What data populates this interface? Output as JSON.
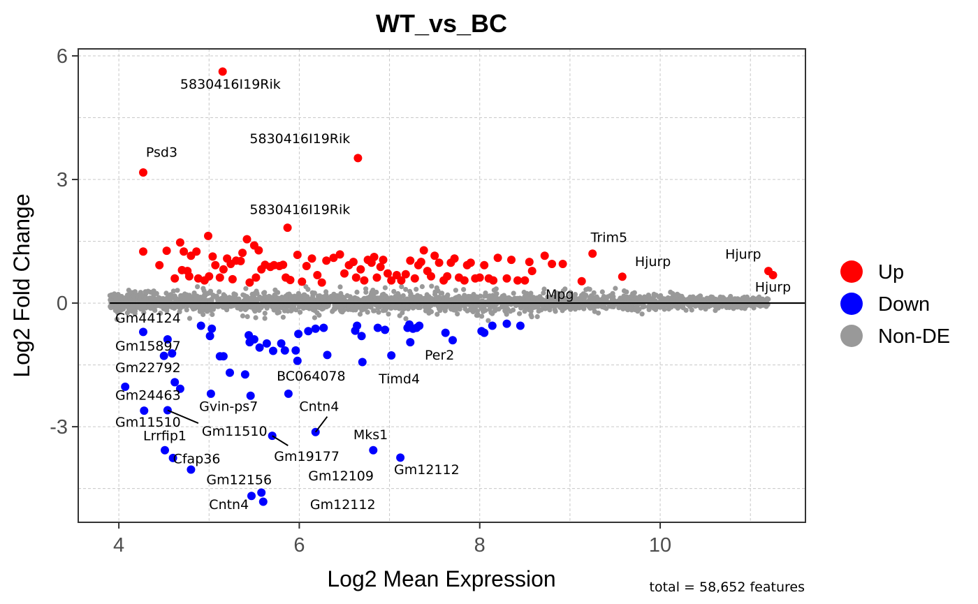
{
  "chart_data": {
    "type": "scatter",
    "title": "WT_vs_BC",
    "xlabel": "Log2 Mean Expression",
    "ylabel": "Log2 Fold Change",
    "caption": "total = 58,652 features",
    "xlim": [
      3.55,
      11.61
    ],
    "ylim": [
      -5.32,
      6.17
    ],
    "x_ticks": [
      4,
      6,
      8,
      10
    ],
    "x_tick_labels": [
      "4",
      "6",
      "8",
      "10"
    ],
    "y_ticks": [
      6,
      3,
      0,
      -3
    ],
    "y_tick_labels": [
      "6",
      "3",
      "0",
      "-3"
    ],
    "x_minor_grid": [
      5,
      7,
      9,
      11
    ],
    "y_minor_grid": [
      4.5,
      1.5,
      -1.5,
      -4.5
    ],
    "grid": true,
    "hline": 0,
    "legend": {
      "position": "right",
      "entries": [
        {
          "name": "Up",
          "color": "#ff0000"
        },
        {
          "name": "Down",
          "color": "#0000ff"
        },
        {
          "name": "Non-DE",
          "color": "#999999"
        }
      ]
    },
    "series": [
      {
        "name": "Up",
        "color": "#ff0000",
        "points": [
          [
            5.15,
            5.62
          ],
          [
            6.65,
            3.52
          ],
          [
            4.27,
            3.17
          ],
          [
            5.87,
            1.83
          ],
          [
            9.25,
            1.2
          ],
          [
            9.58,
            0.64
          ],
          [
            11.2,
            0.78
          ],
          [
            11.25,
            0.68
          ],
          [
            4.27,
            1.25
          ],
          [
            4.45,
            0.92
          ],
          [
            4.53,
            1.27
          ],
          [
            4.62,
            0.6
          ],
          [
            4.68,
            1.47
          ],
          [
            4.7,
            0.8
          ],
          [
            4.72,
            1.25
          ],
          [
            4.76,
            0.78
          ],
          [
            4.8,
            1.15
          ],
          [
            4.78,
            0.65
          ],
          [
            4.86,
            1.25
          ],
          [
            4.88,
            0.6
          ],
          [
            4.95,
            0.55
          ],
          [
            4.99,
            1.63
          ],
          [
            5.0,
            0.65
          ],
          [
            5.04,
            1.13
          ],
          [
            5.07,
            0.92
          ],
          [
            5.12,
            0.62
          ],
          [
            5.16,
            0.82
          ],
          [
            5.2,
            1.08
          ],
          [
            5.24,
            0.95
          ],
          [
            5.26,
            0.58
          ],
          [
            5.3,
            1.03
          ],
          [
            5.35,
            1.02
          ],
          [
            5.37,
            1.22
          ],
          [
            5.42,
            1.55
          ],
          [
            5.45,
            0.5
          ],
          [
            5.5,
            1.4
          ],
          [
            5.52,
            0.62
          ],
          [
            5.55,
            1.28
          ],
          [
            5.58,
            0.82
          ],
          [
            5.62,
            0.93
          ],
          [
            5.68,
            0.88
          ],
          [
            5.72,
            0.92
          ],
          [
            5.78,
            0.9
          ],
          [
            5.82,
            0.93
          ],
          [
            5.85,
            0.62
          ],
          [
            5.9,
            0.56
          ],
          [
            5.98,
            1.17
          ],
          [
            6.03,
            0.52
          ],
          [
            6.08,
            0.9
          ],
          [
            6.14,
            1.08
          ],
          [
            6.2,
            0.68
          ],
          [
            6.25,
            0.5
          ],
          [
            6.3,
            1.03
          ],
          [
            6.38,
            1.1
          ],
          [
            6.45,
            1.18
          ],
          [
            6.5,
            0.72
          ],
          [
            6.55,
            0.92
          ],
          [
            6.6,
            1.0
          ],
          [
            6.63,
            0.62
          ],
          [
            6.68,
            0.82
          ],
          [
            6.72,
            0.55
          ],
          [
            6.76,
            1.05
          ],
          [
            6.8,
            0.98
          ],
          [
            6.83,
            1.12
          ],
          [
            6.86,
            0.62
          ],
          [
            6.9,
            0.88
          ],
          [
            6.93,
            1.05
          ],
          [
            6.98,
            0.72
          ],
          [
            7.02,
            0.55
          ],
          [
            7.08,
            0.68
          ],
          [
            7.13,
            0.55
          ],
          [
            7.18,
            0.7
          ],
          [
            7.23,
            1.03
          ],
          [
            7.28,
            0.6
          ],
          [
            7.32,
            0.92
          ],
          [
            7.35,
            1.0
          ],
          [
            7.38,
            1.28
          ],
          [
            7.42,
            0.78
          ],
          [
            7.46,
            0.65
          ],
          [
            7.5,
            1.15
          ],
          [
            7.55,
            0.98
          ],
          [
            7.6,
            0.55
          ],
          [
            7.64,
            0.65
          ],
          [
            7.68,
            0.98
          ],
          [
            7.72,
            1.08
          ],
          [
            7.77,
            0.62
          ],
          [
            7.83,
            0.55
          ],
          [
            7.86,
            0.92
          ],
          [
            7.9,
            0.98
          ],
          [
            7.95,
            0.6
          ],
          [
            8.0,
            0.62
          ],
          [
            8.05,
            0.92
          ],
          [
            8.1,
            0.6
          ],
          [
            8.15,
            0.55
          ],
          [
            8.2,
            1.1
          ],
          [
            8.3,
            0.6
          ],
          [
            8.35,
            1.05
          ],
          [
            8.42,
            0.55
          ],
          [
            8.5,
            0.55
          ],
          [
            8.55,
            1.0
          ],
          [
            8.58,
            0.78
          ],
          [
            8.72,
            1.15
          ],
          [
            8.8,
            0.95
          ],
          [
            8.92,
            0.95
          ],
          [
            9.13,
            0.53
          ]
        ]
      },
      {
        "name": "Down",
        "color": "#0000ff",
        "points": [
          [
            4.27,
            -0.7
          ],
          [
            4.07,
            -2.03
          ],
          [
            4.28,
            -2.61
          ],
          [
            4.5,
            -1.28
          ],
          [
            4.54,
            -0.88
          ],
          [
            4.59,
            -1.22
          ],
          [
            4.62,
            -1.92
          ],
          [
            4.68,
            -2.08
          ],
          [
            4.54,
            -2.6
          ],
          [
            4.51,
            -3.57
          ],
          [
            4.6,
            -3.76
          ],
          [
            4.8,
            -4.04
          ],
          [
            4.91,
            -0.55
          ],
          [
            5.01,
            -0.8
          ],
          [
            5.03,
            -0.62
          ],
          [
            5.02,
            -2.2
          ],
          [
            5.12,
            -1.29
          ],
          [
            5.16,
            -1.29
          ],
          [
            5.23,
            -1.69
          ],
          [
            5.4,
            -1.73
          ],
          [
            5.44,
            -0.78
          ],
          [
            5.45,
            -0.95
          ],
          [
            5.5,
            -0.88
          ],
          [
            5.46,
            -2.25
          ],
          [
            5.56,
            -1.08
          ],
          [
            5.64,
            -0.98
          ],
          [
            5.7,
            -3.22
          ],
          [
            5.8,
            -0.98
          ],
          [
            5.84,
            -1.15
          ],
          [
            5.96,
            -1.15
          ],
          [
            5.98,
            -1.4
          ],
          [
            5.99,
            -0.75
          ],
          [
            5.71,
            -1.16
          ],
          [
            5.88,
            -2.2
          ],
          [
            6.1,
            -0.68
          ],
          [
            6.18,
            -0.62
          ],
          [
            6.27,
            -0.6
          ],
          [
            6.31,
            -1.26
          ],
          [
            6.18,
            -3.13
          ],
          [
            6.62,
            -0.67
          ],
          [
            6.64,
            -0.55
          ],
          [
            6.69,
            -0.8
          ],
          [
            6.7,
            -1.43
          ],
          [
            6.82,
            -3.57
          ],
          [
            6.87,
            -0.6
          ],
          [
            6.95,
            -0.65
          ],
          [
            7.02,
            -1.27
          ],
          [
            7.12,
            -3.75
          ],
          [
            7.2,
            -0.6
          ],
          [
            7.22,
            -0.52
          ],
          [
            7.23,
            -0.95
          ],
          [
            7.3,
            -0.6
          ],
          [
            7.26,
            -0.62
          ],
          [
            7.33,
            -0.55
          ],
          [
            7.62,
            -0.72
          ],
          [
            7.7,
            -0.9
          ],
          [
            8.05,
            -0.72
          ],
          [
            8.02,
            -0.68
          ],
          [
            8.14,
            -0.55
          ],
          [
            8.3,
            -0.5
          ],
          [
            8.45,
            -0.55
          ],
          [
            5.47,
            -4.68
          ],
          [
            5.58,
            -4.6
          ],
          [
            5.6,
            -4.82
          ]
        ]
      }
    ],
    "nonde_cloud": {
      "color": "#999999",
      "x_range": [
        3.9,
        11.2
      ],
      "description": "dense band of non-DE features around log2FC = 0 (roughly -0.35 to 0.45)"
    },
    "annotations": [
      {
        "text": "5830416I19Rik",
        "x": 5.15,
        "y": 5.62,
        "label_x": 4.68,
        "label_y": 5.2,
        "leader": false
      },
      {
        "text": "5830416I19Rik",
        "x": 6.65,
        "y": 3.52,
        "label_x": 5.45,
        "label_y": 3.88,
        "leader": false
      },
      {
        "text": "Psd3",
        "x": 4.27,
        "y": 3.17,
        "label_x": 4.3,
        "label_y": 3.55,
        "leader": false
      },
      {
        "text": "5830416I19Rik",
        "x": 5.87,
        "y": 1.83,
        "label_x": 5.45,
        "label_y": 2.16,
        "leader": false
      },
      {
        "text": "Trim5",
        "x": 9.25,
        "y": 1.2,
        "label_x": 9.23,
        "label_y": 1.48,
        "leader": false
      },
      {
        "text": "Hjurp",
        "x": 9.58,
        "y": 0.64,
        "label_x": 9.72,
        "label_y": 0.9,
        "leader": false
      },
      {
        "text": "Hjurp",
        "x": 11.2,
        "y": 0.78,
        "label_x": 10.72,
        "label_y": 1.08,
        "leader": false
      },
      {
        "text": "Hjurp",
        "x": 11.25,
        "y": 0.68,
        "label_x": 11.05,
        "label_y": 0.28,
        "leader": false
      },
      {
        "text": "Mpg",
        "x": 8.8,
        "y": 0.05,
        "label_x": 8.73,
        "label_y": 0.1,
        "leader": false
      },
      {
        "text": "Gm44124",
        "x": 4.27,
        "y": -0.7,
        "label_x": 3.96,
        "label_y": -0.47,
        "leader": false
      },
      {
        "text": "Gm15897",
        "x": 4.54,
        "y": -0.88,
        "label_x": 3.96,
        "label_y": -1.15,
        "leader": false
      },
      {
        "text": "Gm22792",
        "x": 4.07,
        "y": -2.03,
        "label_x": 3.96,
        "label_y": -1.68,
        "leader": false
      },
      {
        "text": "Gm24463",
        "x": 4.28,
        "y": -2.61,
        "label_x": 3.96,
        "label_y": -2.35,
        "leader": false
      },
      {
        "text": "Gm11510",
        "x": 4.28,
        "y": -2.61,
        "label_x": 3.96,
        "label_y": -3.0,
        "leader": false
      },
      {
        "text": "Gm11510",
        "x": 4.54,
        "y": -2.6,
        "label_x": 4.92,
        "label_y": -3.22,
        "leader": true
      },
      {
        "text": "Lrrfip1",
        "x": 4.51,
        "y": -3.57,
        "label_x": 4.27,
        "label_y": -3.33,
        "leader": false
      },
      {
        "text": "Cfap36",
        "x": 4.6,
        "y": -3.76,
        "label_x": 4.6,
        "label_y": -3.89,
        "leader": false
      },
      {
        "text": "Gvin-ps7",
        "x": 5.02,
        "y": -2.2,
        "label_x": 4.89,
        "label_y": -2.62,
        "leader": false
      },
      {
        "text": "BC064078",
        "x": 5.88,
        "y": -2.2,
        "label_x": 5.75,
        "label_y": -1.88,
        "leader": false
      },
      {
        "text": "Cntn4",
        "x": 6.18,
        "y": -3.13,
        "label_x": 6.0,
        "label_y": -2.62,
        "leader": true
      },
      {
        "text": "Gm19177",
        "x": 5.7,
        "y": -3.22,
        "label_x": 5.72,
        "label_y": -3.83,
        "leader": true
      },
      {
        "text": "Mks1",
        "x": 6.82,
        "y": -3.57,
        "label_x": 6.6,
        "label_y": -3.3,
        "leader": false
      },
      {
        "text": "Gm12112",
        "x": 7.12,
        "y": -3.75,
        "label_x": 7.05,
        "label_y": -4.15,
        "leader": false
      },
      {
        "text": "Per2",
        "x": 7.02,
        "y": -1.27,
        "label_x": 7.39,
        "label_y": -1.37,
        "leader": false
      },
      {
        "text": "Timd4",
        "x": 6.7,
        "y": -1.43,
        "label_x": 6.88,
        "label_y": -1.95,
        "leader": false
      },
      {
        "text": "Gm12156",
        "x": 5.47,
        "y": -4.68,
        "label_x": 4.97,
        "label_y": -4.4,
        "leader": false
      },
      {
        "text": "Gm12109",
        "x": 5.58,
        "y": -4.6,
        "label_x": 6.1,
        "label_y": -4.3,
        "leader": false
      },
      {
        "text": "Cntn4",
        "x": 5.47,
        "y": -4.68,
        "label_x": 5.0,
        "label_y": -5.0,
        "leader": false
      },
      {
        "text": "Gm12112",
        "x": 5.6,
        "y": -4.82,
        "label_x": 6.12,
        "label_y": -5.0,
        "leader": false
      }
    ]
  }
}
